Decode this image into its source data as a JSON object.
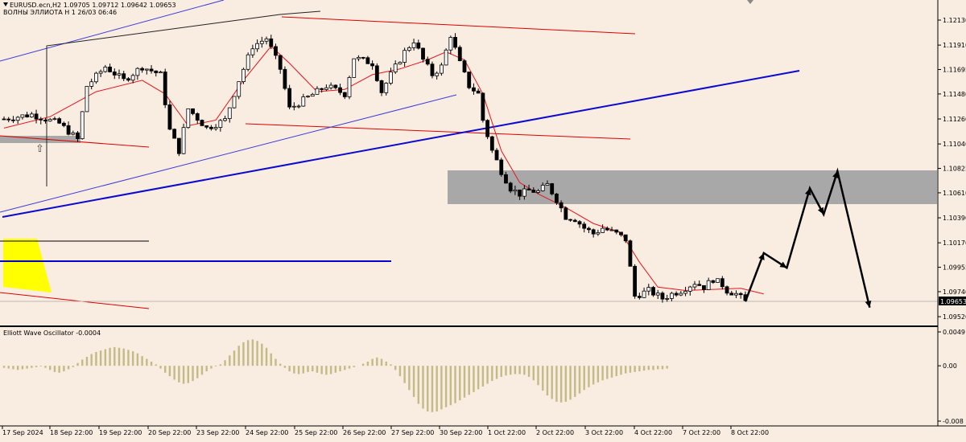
{
  "header": {
    "symbol_line": "EURUSD.ecn,H2  1.09705 1.09712 1.09642 1.09653",
    "indicator_line": "ВОЛНЫ ЭЛЛИОТА H 1 26/03 06:46"
  },
  "oscillator": {
    "title": "Elliott Wave Oscillator -0.0004"
  },
  "current_price_label": "1.09653",
  "colors": {
    "background": "#f9ece1",
    "candle": "#000000",
    "ma": "#e8141b",
    "trend_blue": "#0a0ad0",
    "channel_thin_blue": "#3b3bdc",
    "red_line": "#dd0000",
    "zone_gray": "#a8a8a8",
    "yellow_zone": "#ffff00",
    "histogram": "#c3bb86",
    "forecast": "#000000"
  },
  "chart_data": [
    {
      "type": "candlestick",
      "title": "EURUSD.ecn,H2",
      "price_axis_ticks": [
        "1.12130",
        "1.11910",
        "1.11695",
        "1.11480",
        "1.11260",
        "1.11040",
        "1.10825",
        "1.10610",
        "1.10390",
        "1.10170",
        "1.09955",
        "1.09740",
        "1.09520"
      ],
      "time_axis_ticks": [
        "17 Sep 2024",
        "18 Sep 22:00",
        "19 Sep 22:00",
        "20 Sep 22:00",
        "23 Sep 22:00",
        "24 Sep 22:00",
        "25 Sep 22:00",
        "26 Sep 22:00",
        "27 Sep 22:00",
        "30 Sep 22:00",
        "1 Oct 22:00",
        "2 Oct 22:00",
        "3 Oct 22:00",
        "4 Oct 22:00",
        "7 Oct 22:00",
        "8 Oct 22:00"
      ],
      "last_price": 1.09653,
      "ohlc_last": {
        "open": 1.09705,
        "high": 1.09712,
        "low": 1.09642,
        "close": 1.09653
      },
      "close_path": [
        [
          0,
          1.1126
        ],
        [
          6,
          1.113
        ],
        [
          12,
          1.1122
        ],
        [
          16,
          1.1108
        ],
        [
          18,
          1.1155
        ],
        [
          22,
          1.1172
        ],
        [
          26,
          1.116
        ],
        [
          30,
          1.1172
        ],
        [
          34,
          1.1165
        ],
        [
          36,
          1.1116
        ],
        [
          38,
          1.1098
        ],
        [
          40,
          1.1135
        ],
        [
          44,
          1.1118
        ],
        [
          48,
          1.1125
        ],
        [
          51,
          1.116
        ],
        [
          54,
          1.119
        ],
        [
          57,
          1.1197
        ],
        [
          60,
          1.117
        ],
        [
          62,
          1.1135
        ],
        [
          66,
          1.1145
        ],
        [
          70,
          1.1155
        ],
        [
          74,
          1.1148
        ],
        [
          76,
          1.118
        ],
        [
          80,
          1.1175
        ],
        [
          82,
          1.115
        ],
        [
          84,
          1.1165
        ],
        [
          87,
          1.1185
        ],
        [
          89,
          1.1195
        ],
        [
          91,
          1.1178
        ],
        [
          93,
          1.1165
        ],
        [
          95,
          1.1172
        ],
        [
          97,
          1.12
        ],
        [
          99,
          1.1175
        ],
        [
          101,
          1.1155
        ],
        [
          103,
          1.1148
        ],
        [
          104,
          1.1125
        ],
        [
          106,
          1.1098
        ],
        [
          108,
          1.108
        ],
        [
          110,
          1.1065
        ],
        [
          112,
          1.106
        ],
        [
          114,
          1.1063
        ],
        [
          116,
          1.1062
        ],
        [
          118,
          1.1068
        ],
        [
          120,
          1.1055
        ],
        [
          122,
          1.104
        ],
        [
          124,
          1.1038
        ],
        [
          126,
          1.103
        ],
        [
          128,
          1.1025
        ],
        [
          130,
          1.103
        ],
        [
          133,
          1.1025
        ],
        [
          135,
          1.102
        ],
        [
          137,
          1.097
        ],
        [
          140,
          1.0975
        ],
        [
          143,
          1.0968
        ],
        [
          145,
          1.0972
        ],
        [
          147,
          1.0975
        ],
        [
          150,
          1.0982
        ],
        [
          152,
          1.0978
        ],
        [
          154,
          1.0985
        ],
        [
          156,
          1.098
        ],
        [
          157,
          1.0975
        ],
        [
          159,
          1.0972
        ],
        [
          161,
          1.09653
        ]
      ],
      "moving_average_path": [
        [
          0,
          1.1118
        ],
        [
          10,
          1.1128
        ],
        [
          20,
          1.115
        ],
        [
          30,
          1.116
        ],
        [
          35,
          1.1148
        ],
        [
          40,
          1.112
        ],
        [
          46,
          1.1125
        ],
        [
          52,
          1.116
        ],
        [
          58,
          1.119
        ],
        [
          62,
          1.1175
        ],
        [
          68,
          1.115
        ],
        [
          74,
          1.1152
        ],
        [
          80,
          1.1165
        ],
        [
          86,
          1.117
        ],
        [
          92,
          1.1178
        ],
        [
          96,
          1.1185
        ],
        [
          100,
          1.1178
        ],
        [
          104,
          1.1148
        ],
        [
          108,
          1.1098
        ],
        [
          112,
          1.107
        ],
        [
          116,
          1.106
        ],
        [
          122,
          1.1048
        ],
        [
          128,
          1.1034
        ],
        [
          134,
          1.1026
        ],
        [
          138,
          1.1
        ],
        [
          142,
          1.0978
        ],
        [
          148,
          1.0975
        ],
        [
          154,
          1.0976
        ],
        [
          160,
          1.0977
        ],
        [
          165,
          1.0972
        ]
      ],
      "supply_zone": {
        "from": 1.10525,
        "to": 1.1083
      },
      "forecast_path": [
        [
          161,
          1.09653
        ],
        [
          165,
          1.1008
        ],
        [
          170,
          1.0995
        ],
        [
          175,
          1.1065
        ],
        [
          178,
          1.1042
        ],
        [
          181,
          1.108
        ],
        [
          188,
          1.096
        ]
      ]
    },
    {
      "type": "bar",
      "title": "Elliott Wave Oscillator -0.0004",
      "value_axis_ticks": [
        "0.0049",
        "0.00",
        "-0.008"
      ],
      "ylim": [
        -0.008,
        0.0049
      ],
      "values": [
        -0.0003,
        -0.0004,
        -0.0005,
        -0.0006,
        -0.0005,
        -0.0004,
        -0.0003,
        -0.0002,
        -0.0001,
        -0.0003,
        -0.0006,
        -0.0009,
        -0.001,
        -0.0008,
        -0.0005,
        -0.0002,
        0.0004,
        0.0009,
        0.0013,
        0.0017,
        0.002,
        0.0022,
        0.0024,
        0.0026,
        0.0027,
        0.0026,
        0.0025,
        0.0023,
        0.0021,
        0.0018,
        0.0014,
        0.001,
        0.0006,
        0.0002,
        -0.0004,
        -0.001,
        -0.0015,
        -0.002,
        -0.0024,
        -0.0026,
        -0.0025,
        -0.0022,
        -0.0018,
        -0.0013,
        -0.0008,
        -0.0004,
        -0.0001,
        0.0002,
        0.0008,
        0.0015,
        0.0022,
        0.0029,
        0.0034,
        0.0037,
        0.0038,
        0.0036,
        0.0032,
        0.0026,
        0.0018,
        0.001,
        0.0003,
        -0.0003,
        -0.0008,
        -0.0011,
        -0.0012,
        -0.0011,
        -0.0009,
        -0.0008,
        -0.001,
        -0.0012,
        -0.0013,
        -0.0012,
        -0.001,
        -0.0008,
        -0.0006,
        -0.0004,
        -0.0002,
        0.0,
        0.0003,
        0.0006,
        0.001,
        0.0012,
        0.001,
        0.0006,
        0.0002,
        -0.0006,
        -0.0015,
        -0.0025,
        -0.0035,
        -0.0045,
        -0.0055,
        -0.0062,
        -0.0066,
        -0.0067,
        -0.0066,
        -0.0063,
        -0.006,
        -0.0057,
        -0.0054,
        -0.005,
        -0.0046,
        -0.0042,
        -0.0038,
        -0.0034,
        -0.003,
        -0.0026,
        -0.0022,
        -0.0019,
        -0.0016,
        -0.0014,
        -0.0013,
        -0.0012,
        -0.0012,
        -0.0013,
        -0.0016,
        -0.0021,
        -0.0028,
        -0.0036,
        -0.0043,
        -0.0048,
        -0.0052,
        -0.0053,
        -0.0052,
        -0.0049,
        -0.0045,
        -0.004,
        -0.0035,
        -0.0031,
        -0.0027,
        -0.0024,
        -0.0021,
        -0.0019,
        -0.0017,
        -0.0015,
        -0.0013,
        -0.0011,
        -0.001,
        -0.0009,
        -0.0008,
        -0.0007,
        -0.0006,
        -0.0006,
        -0.0005,
        -0.0005,
        -0.0004
      ]
    }
  ]
}
